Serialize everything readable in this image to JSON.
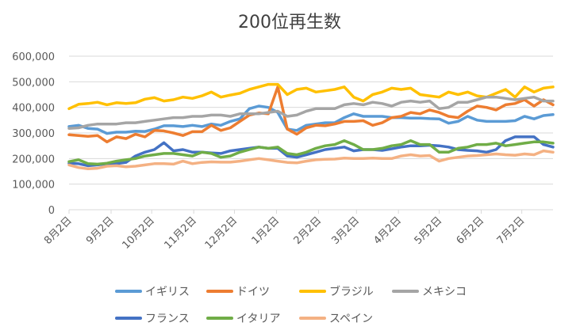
{
  "chart_data": {
    "type": "line",
    "title": "200位再生数",
    "ylim": [
      0,
      600000
    ],
    "yticks": [
      "0",
      "100,000",
      "200,000",
      "300,000",
      "400,000",
      "500,000",
      "600,000"
    ],
    "x_labels": [
      "8月2日",
      "9月2日",
      "10月2日",
      "11月2日",
      "12月2日",
      "1月2日",
      "2月2日",
      "3月2日",
      "4月2日",
      "5月2日",
      "6月2日",
      "7月2日"
    ],
    "x_label_weeks": [
      0,
      4.43,
      8.71,
      13.14,
      17.43,
      21.86,
      26.29,
      30.29,
      34.71,
      39.0,
      43.43,
      47.71
    ],
    "grid": true,
    "legend_position": "bottom",
    "series": [
      {
        "name": "イギリス",
        "color": "#5B9BD5",
        "values": [
          325000,
          330000,
          318000,
          315000,
          298000,
          303000,
          303000,
          307000,
          306000,
          315000,
          328000,
          328000,
          325000,
          330000,
          325000,
          335000,
          330000,
          345000,
          355000,
          395000,
          405000,
          400000,
          380000,
          315000,
          310000,
          330000,
          335000,
          340000,
          340000,
          360000,
          375000,
          365000,
          365000,
          365000,
          360000,
          360000,
          358000,
          358000,
          356000,
          355000,
          338000,
          345000,
          365000,
          350000,
          345000,
          345000,
          345000,
          348000,
          365000,
          355000,
          368000,
          372000
        ]
      },
      {
        "name": "ドイツ",
        "color": "#ED7D31",
        "values": [
          293000,
          290000,
          287000,
          290000,
          265000,
          285000,
          278000,
          295000,
          285000,
          310000,
          308000,
          300000,
          290000,
          305000,
          305000,
          330000,
          310000,
          320000,
          345000,
          370000,
          378000,
          375000,
          480000,
          315000,
          295000,
          320000,
          330000,
          328000,
          335000,
          345000,
          345000,
          348000,
          330000,
          340000,
          360000,
          365000,
          380000,
          375000,
          390000,
          380000,
          365000,
          360000,
          385000,
          405000,
          400000,
          390000,
          410000,
          415000,
          430000,
          405000,
          430000,
          410000
        ]
      },
      {
        "name": "ブラジル",
        "color": "#FFC000",
        "values": [
          395000,
          412000,
          415000,
          420000,
          410000,
          418000,
          415000,
          418000,
          432000,
          438000,
          425000,
          430000,
          440000,
          435000,
          445000,
          460000,
          440000,
          448000,
          455000,
          470000,
          480000,
          490000,
          490000,
          450000,
          470000,
          475000,
          460000,
          465000,
          470000,
          480000,
          440000,
          425000,
          450000,
          460000,
          475000,
          470000,
          475000,
          450000,
          445000,
          440000,
          460000,
          450000,
          460000,
          445000,
          440000,
          455000,
          470000,
          440000,
          480000,
          460000,
          475000,
          480000
        ]
      },
      {
        "name": "メキシコ",
        "color": "#A5A5A5",
        "values": [
          318000,
          320000,
          330000,
          335000,
          335000,
          335000,
          340000,
          340000,
          345000,
          350000,
          355000,
          360000,
          360000,
          365000,
          365000,
          370000,
          370000,
          365000,
          375000,
          375000,
          375000,
          380000,
          385000,
          365000,
          370000,
          385000,
          395000,
          395000,
          395000,
          410000,
          415000,
          410000,
          420000,
          415000,
          405000,
          420000,
          425000,
          420000,
          425000,
          395000,
          400000,
          420000,
          420000,
          430000,
          440000,
          440000,
          435000,
          430000,
          435000,
          440000,
          425000,
          425000
        ]
      },
      {
        "name": "フランス",
        "color": "#4472C4",
        "values": [
          182000,
          180000,
          172000,
          175000,
          180000,
          180000,
          185000,
          210000,
          225000,
          235000,
          262000,
          230000,
          235000,
          225000,
          225000,
          222000,
          220000,
          230000,
          235000,
          240000,
          245000,
          240000,
          240000,
          210000,
          205000,
          215000,
          225000,
          235000,
          240000,
          245000,
          230000,
          235000,
          235000,
          232000,
          238000,
          245000,
          250000,
          250000,
          252000,
          250000,
          245000,
          235000,
          232000,
          230000,
          225000,
          235000,
          270000,
          285000,
          285000,
          285000,
          255000,
          245000
        ]
      },
      {
        "name": "イタリア",
        "color": "#70AD47",
        "values": [
          188000,
          195000,
          180000,
          178000,
          182000,
          190000,
          195000,
          200000,
          210000,
          215000,
          220000,
          220000,
          215000,
          210000,
          225000,
          220000,
          205000,
          210000,
          225000,
          235000,
          245000,
          240000,
          245000,
          220000,
          215000,
          225000,
          240000,
          250000,
          255000,
          270000,
          255000,
          235000,
          235000,
          240000,
          250000,
          255000,
          270000,
          255000,
          255000,
          225000,
          225000,
          240000,
          245000,
          255000,
          255000,
          260000,
          250000,
          255000,
          260000,
          265000,
          265000,
          260000
        ]
      },
      {
        "name": "スペイン",
        "color": "#F4B183",
        "values": [
          175000,
          165000,
          160000,
          162000,
          170000,
          172000,
          168000,
          170000,
          175000,
          180000,
          180000,
          178000,
          190000,
          180000,
          185000,
          187000,
          186000,
          186000,
          190000,
          195000,
          200000,
          195000,
          190000,
          185000,
          183000,
          190000,
          195000,
          197000,
          198000,
          202000,
          200000,
          200000,
          202000,
          200000,
          200000,
          210000,
          215000,
          210000,
          212000,
          190000,
          200000,
          205000,
          210000,
          212000,
          215000,
          218000,
          215000,
          213000,
          218000,
          215000,
          230000,
          225000
        ]
      }
    ]
  }
}
